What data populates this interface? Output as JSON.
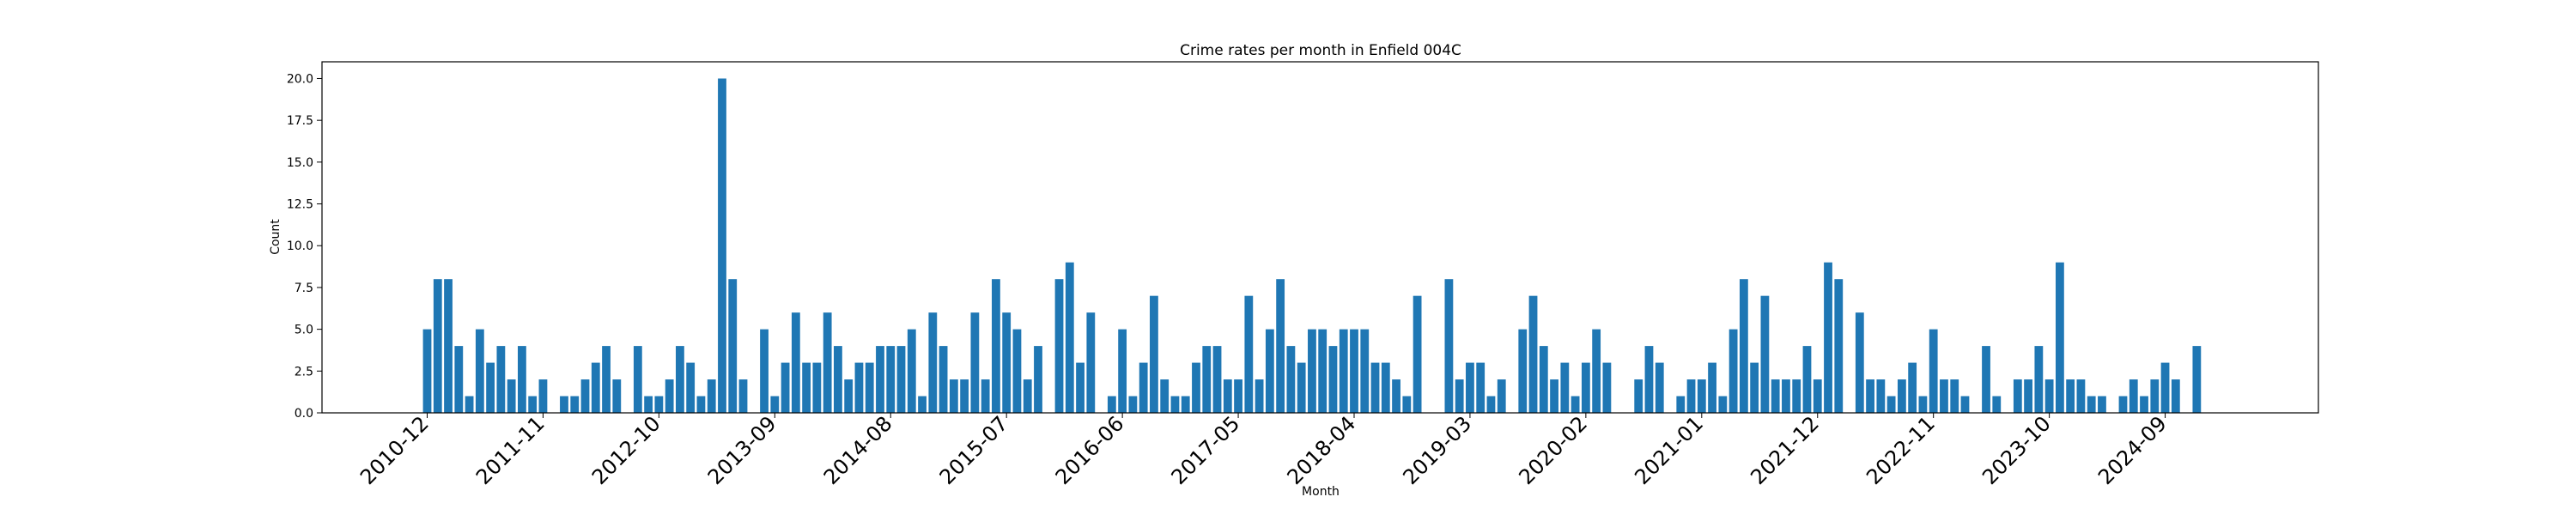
{
  "chart_data": {
    "type": "bar",
    "title": "Crime rates per month in Enfield 004C",
    "xlabel": "Month",
    "ylabel": "Count",
    "ylim": [
      0,
      21
    ],
    "yticks": [
      "0.0",
      "2.5",
      "5.0",
      "7.5",
      "10.0",
      "12.5",
      "15.0",
      "17.5",
      "20.0"
    ],
    "xticks": [
      "2010-12",
      "2011-11",
      "2012-10",
      "2013-09",
      "2014-08",
      "2015-07",
      "2016-06",
      "2017-05",
      "2018-04",
      "2019-03",
      "2020-02",
      "2021-01",
      "2021-12",
      "2022-11",
      "2023-10",
      "2024-09"
    ],
    "bar_color": "#1f77b4",
    "values": [
      5,
      8,
      8,
      4,
      1,
      5,
      3,
      4,
      2,
      4,
      1,
      2,
      0,
      1,
      1,
      2,
      3,
      4,
      2,
      0,
      4,
      1,
      1,
      2,
      4,
      3,
      1,
      2,
      20,
      8,
      2,
      0,
      5,
      1,
      3,
      6,
      3,
      3,
      6,
      4,
      2,
      3,
      3,
      4,
      4,
      4,
      5,
      1,
      6,
      4,
      2,
      2,
      6,
      2,
      8,
      6,
      5,
      2,
      4,
      0,
      8,
      9,
      3,
      6,
      0,
      1,
      5,
      1,
      3,
      7,
      2,
      1,
      1,
      3,
      4,
      4,
      2,
      2,
      7,
      2,
      5,
      8,
      4,
      3,
      5,
      5,
      4,
      5,
      5,
      5,
      3,
      3,
      2,
      1,
      7,
      0,
      0,
      8,
      2,
      3,
      3,
      1,
      2,
      0,
      5,
      7,
      4,
      2,
      3,
      1,
      3,
      5,
      3,
      0,
      0,
      2,
      4,
      3,
      0,
      1,
      2,
      2,
      3,
      1,
      5,
      8,
      3,
      7,
      2,
      2,
      2,
      4,
      2,
      9,
      8,
      0,
      6,
      2,
      2,
      1,
      2,
      3,
      1,
      5,
      2,
      2,
      1,
      0,
      4,
      1,
      0,
      2,
      2,
      4,
      2,
      9,
      2,
      2,
      1,
      1,
      0,
      1,
      2,
      1,
      2,
      3,
      2,
      0,
      4
    ]
  }
}
